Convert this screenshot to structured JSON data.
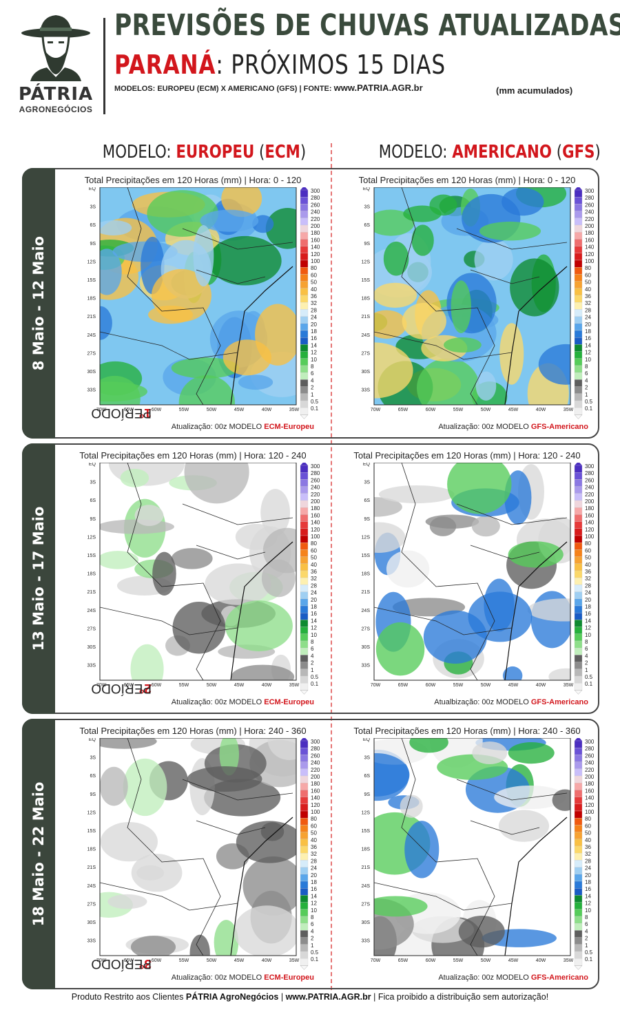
{
  "brand": {
    "name": "PÁTRIA",
    "tagline": "AGRONEGÓCIOS"
  },
  "header": {
    "title": "PREVISÕES DE CHUVAS ATUALIZADAS",
    "state": "PARANÁ",
    "subtitle_rest": ": PRÓXIMOS 15 DIAS",
    "models_prefix": "MODELOS: EUROPEU (ECM) X AMERICANO (GFS)  |  FONTE: ",
    "source": "www.PATRIA.AGR.br",
    "unit_note": "(mm acumulados)"
  },
  "columns": {
    "left": {
      "prefix": "MODELO: ",
      "model": "EUROPEU",
      "paren_open": " (",
      "code": "ECM",
      "paren_close": ")"
    },
    "right": {
      "prefix": "MODELO: ",
      "model": "AMERICANO",
      "paren_open": " (",
      "code": "GFS",
      "paren_close": ")"
    }
  },
  "map_common": {
    "title_prefix": "Total Precipitações em 120 Horas (mm)   |   Hora: ",
    "lat_labels": [
      "EQ",
      "3S",
      "6S",
      "9S",
      "12S",
      "15S",
      "18S",
      "21S",
      "24S",
      "27S",
      "30S",
      "33S"
    ],
    "lon_labels": [
      "70W",
      "65W",
      "60W",
      "55W",
      "50W",
      "45W",
      "40W",
      "35W"
    ],
    "legend_levels": [
      "300",
      "280",
      "260",
      "240",
      "220",
      "200",
      "180",
      "160",
      "140",
      "120",
      "100",
      "80",
      "60",
      "50",
      "40",
      "36",
      "32",
      "28",
      "24",
      "20",
      "18",
      "16",
      "14",
      "12",
      "10",
      "8",
      "6",
      "4",
      "2",
      "1",
      "0.5",
      "0.1"
    ],
    "legend_colors": [
      "#4b2ec0",
      "#6a52d6",
      "#8b78e2",
      "#aa9aec",
      "#c9befa",
      "#efd6dc",
      "#f6a8a8",
      "#ef6e6e",
      "#e63a3a",
      "#d81c1c",
      "#c00000",
      "#f05a10",
      "#f5821a",
      "#f6a232",
      "#f9c044",
      "#fbd86a",
      "#fdf0b0",
      "#d6ecfa",
      "#9fcff2",
      "#5aa6ea",
      "#2a7ad8",
      "#1a5cc4",
      "#0e8a30",
      "#25b03c",
      "#56cc5a",
      "#8ede8a",
      "#c0eebc",
      "#5e5e5e",
      "#8c8c8c",
      "#b8b8b8",
      "#d8d8d8",
      "#f0f0f0"
    ],
    "update_prefix": "Atualização: 00z MODELO ",
    "update_prefix_alt": "Atualbização: 00z MODELO "
  },
  "periods": [
    {
      "number": "1°",
      "word": " PERÍODO",
      "dates": "8 Maio - 12 Maio",
      "hours": "0 - 120",
      "ecm_label": "ECM-Europeu",
      "gfs_label": "GFS-Americano",
      "gfs_update_alt": false
    },
    {
      "number": "2°",
      "word": " PERÍODO",
      "dates": "13 Maio - 17 Maio",
      "hours": "120 - 240",
      "ecm_label": "ECM-Europeu",
      "gfs_label": "GFS-Americano",
      "gfs_update_alt": true
    },
    {
      "number": "3°",
      "word": " PERÍODO",
      "dates": "18 Maio - 22 Maio",
      "hours": "240 - 360",
      "ecm_label": "ECM-Europeu",
      "gfs_label": "GFS-Americano",
      "gfs_update_alt": false
    }
  ],
  "footer": {
    "prefix": "Produto Restrito aos Clientes ",
    "client": "PÁTRIA AgroNegócios",
    "sep1": " | ",
    "site": "www.PATRIA.AGR.br",
    "suffix": " | Fica proibido a distribuição sem autorização!"
  }
}
